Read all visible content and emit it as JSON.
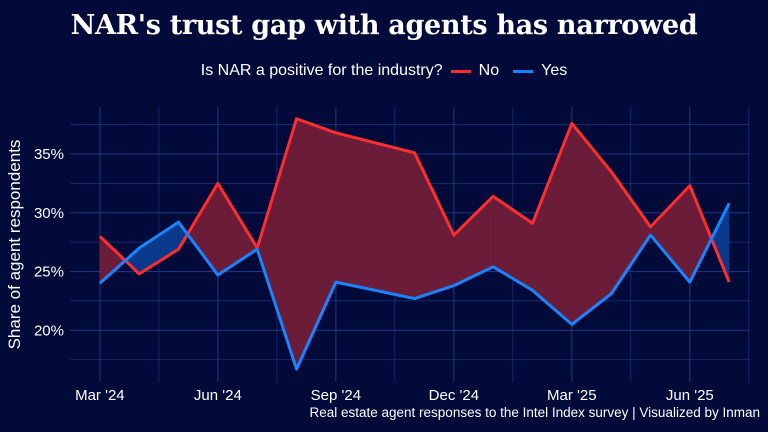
{
  "chart_data": {
    "type": "line",
    "title": "NAR's trust gap with agents has narrowed",
    "legend_title": "Is NAR a positive for the industry?",
    "legend_placement": "top",
    "ylabel": "Share of agent respondents",
    "caption": "Real estate agent responses to the Intel Index survey | Visualized by Inman",
    "x": [
      "2024-03",
      "2024-04",
      "2024-05",
      "2024-06",
      "2024-07",
      "2024-08",
      "2024-09",
      "2024-11",
      "2024-12",
      "2025-01",
      "2025-02",
      "2025-03",
      "2025-04",
      "2025-05",
      "2025-06",
      "2025-07"
    ],
    "x_ticks": [
      {
        "date": "2024-03",
        "label": "Mar '24"
      },
      {
        "date": "2024-06",
        "label": "Jun '24"
      },
      {
        "date": "2024-09",
        "label": "Sep '24"
      },
      {
        "date": "2024-12",
        "label": "Dec '24"
      },
      {
        "date": "2025-03",
        "label": "Mar '25"
      },
      {
        "date": "2025-06",
        "label": "Jun '25"
      }
    ],
    "y_ticks": [
      {
        "value": 20,
        "label": "20%"
      },
      {
        "value": 25,
        "label": "25%"
      },
      {
        "value": 30,
        "label": "30%"
      },
      {
        "value": 35,
        "label": "35%"
      }
    ],
    "ylim": [
      15.6,
      39.0
    ],
    "grid": true,
    "series": [
      {
        "name": "No",
        "color": "#ff2d2d",
        "fill": "#6a1c38",
        "values": [
          28.0,
          24.8,
          26.9,
          32.5,
          27.0,
          38.0,
          36.8,
          35.1,
          28.1,
          31.4,
          29.1,
          37.6,
          33.5,
          28.8,
          32.3,
          24.1
        ]
      },
      {
        "name": "Yes",
        "color": "#1a84ff",
        "fill": "#0a3a8c",
        "values": [
          24.0,
          27.0,
          29.2,
          24.7,
          26.9,
          16.7,
          24.1,
          22.7,
          23.8,
          25.4,
          23.4,
          20.5,
          23.1,
          28.1,
          24.1,
          30.8
        ]
      }
    ]
  },
  "colors": {
    "background": "#010a38",
    "grid": "#1a3580"
  }
}
